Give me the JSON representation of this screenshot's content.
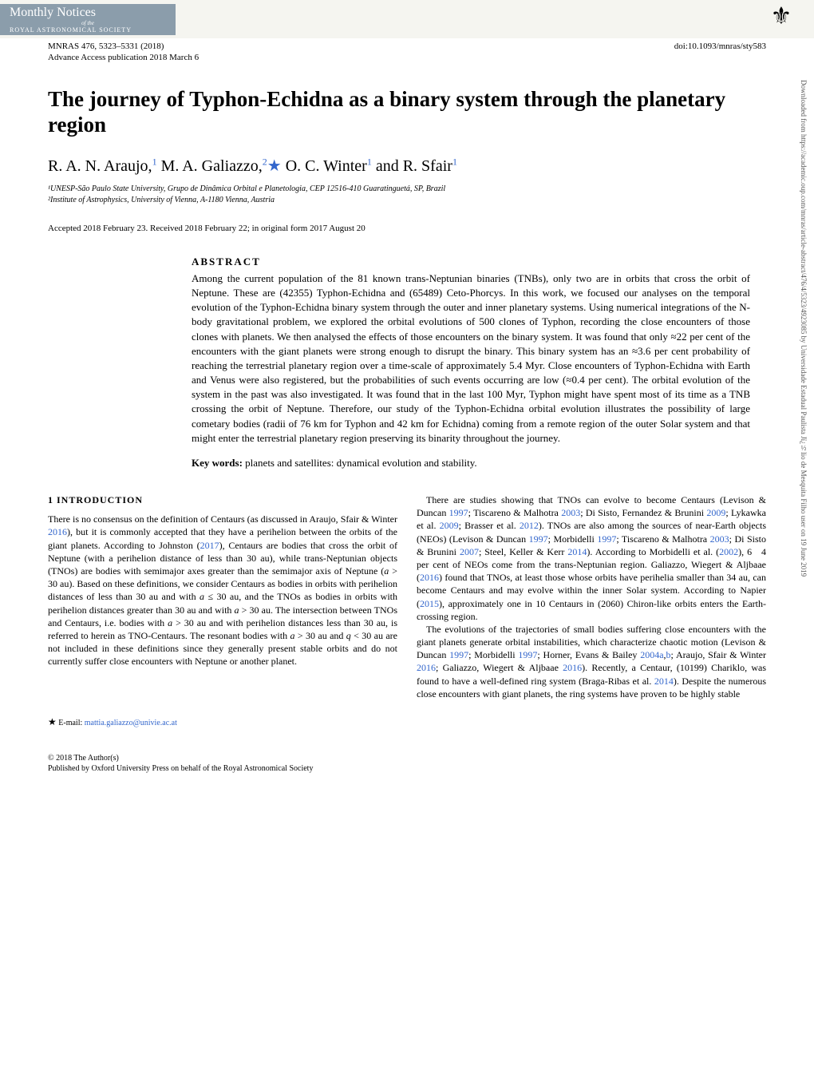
{
  "banner": {
    "journal_title": "Monthly Notices",
    "journal_sub": "of the",
    "journal_org": "ROYAL ASTRONOMICAL SOCIETY",
    "society_icon": "⚜"
  },
  "meta": {
    "citation": "MNRAS 476, 5323–5331 (2018)",
    "doi": "doi:10.1093/mnras/sty583",
    "advance": "Advance Access publication 2018 March 6"
  },
  "title": "The journey of Typhon-Echidna as a binary system through the planetary region",
  "authors_html": "R. A. N. Araujo,¹ M. A. Galiazzo,²★ O. C. Winter¹ and R. Sfair¹",
  "author_parts": {
    "a1": "R. A. N. Araujo,",
    "s1": "1",
    "a2": " M. A. Galiazzo,",
    "s2": "2",
    "star": "★",
    "a3": " O. C. Winter",
    "s3": "1",
    "a4": " and R. Sfair",
    "s4": "1"
  },
  "affiliations": {
    "aff1": "¹UNESP-São Paulo State University, Grupo de Dinâmica Orbital e Planetologia, CEP 12516-410 Guaratinguetá, SP, Brazil",
    "aff2": "²Institute of Astrophysics, University of Vienna, A-1180 Vienna, Austria"
  },
  "received": "Accepted 2018 February 23. Received 2018 February 22; in original form 2017 August 20",
  "abstract": {
    "heading": "ABSTRACT",
    "text": "Among the current population of the 81 known trans-Neptunian binaries (TNBs), only two are in orbits that cross the orbit of Neptune. These are (42355) Typhon-Echidna and (65489) Ceto-Phorcys. In this work, we focused our analyses on the temporal evolution of the Typhon-Echidna binary system through the outer and inner planetary systems. Using numerical integrations of the N-body gravitational problem, we explored the orbital evolutions of 500 clones of Typhon, recording the close encounters of those clones with planets. We then analysed the effects of those encounters on the binary system. It was found that only ≈22 per cent of the encounters with the giant planets were strong enough to disrupt the binary. This binary system has an ≈3.6 per cent probability of reaching the terrestrial planetary region over a time-scale of approximately 5.4 Myr. Close encounters of Typhon-Echidna with Earth and Venus were also registered, but the probabilities of such events occurring are low (≈0.4 per cent). The orbital evolution of the system in the past was also investigated. It was found that in the last 100 Myr, Typhon might have spent most of its time as a TNB crossing the orbit of Neptune. Therefore, our study of the Typhon-Echidna orbital evolution illustrates the possibility of large cometary bodies (radii of 76 km for Typhon and 42 km for Echidna) coming from a remote region of the outer Solar system and that might enter the terrestrial planetary region preserving its binarity throughout the journey."
  },
  "keywords": {
    "label": "Key words:",
    "text": " planets and satellites: dynamical evolution and stability."
  },
  "section1": {
    "heading": "1 INTRODUCTION"
  },
  "email_note": {
    "star": "★",
    "label": " E-mail: ",
    "email": "mattia.galiazzo@univie.ac.at"
  },
  "footer": {
    "line1": "© 2018 The Author(s)",
    "line2": "Published by Oxford University Press on behalf of the Royal Astronomical Society"
  },
  "side_text": "Downloaded from https://academic.oup.com/mnras/article-abstract/476/4/5323/4923085 by Universidade Estadual Paulista Jï¿½lio de Mesquita Filho user on 19 June 2019",
  "colors": {
    "link": "#3366cc",
    "banner_bg": "#8b9dab",
    "text": "#000000",
    "side": "#555555"
  }
}
